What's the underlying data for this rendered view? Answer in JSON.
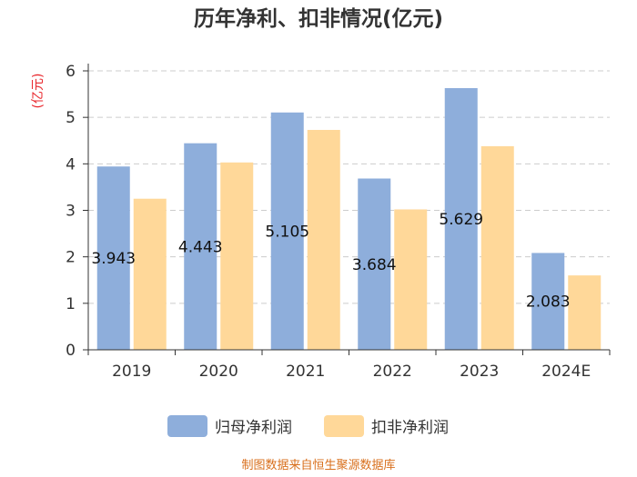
{
  "chart_data": {
    "type": "bar",
    "title": "历年净利、扣非情况(亿元)",
    "ylabel": "(亿元)",
    "xlabel": "",
    "ylim": [
      0,
      6
    ],
    "yticks": [
      0,
      1,
      2,
      3,
      4,
      5,
      6
    ],
    "grid": true,
    "categories": [
      "2019",
      "2020",
      "2021",
      "2022",
      "2023",
      "2024E"
    ],
    "series": [
      {
        "name": "归母净利润",
        "values": [
          3.943,
          4.443,
          5.105,
          3.684,
          5.629,
          2.083
        ],
        "labels": [
          "3.943",
          "4.443",
          "5.105",
          "3.684",
          "5.629",
          "2.083"
        ],
        "color": "#8eaedb"
      },
      {
        "name": "扣非净利润",
        "values": [
          3.25,
          4.03,
          4.73,
          3.02,
          4.38,
          1.6
        ],
        "color": "#ffd899"
      }
    ],
    "legend_position": "bottom"
  },
  "footer": {
    "source": "制图数据来自恒生聚源数据库"
  }
}
